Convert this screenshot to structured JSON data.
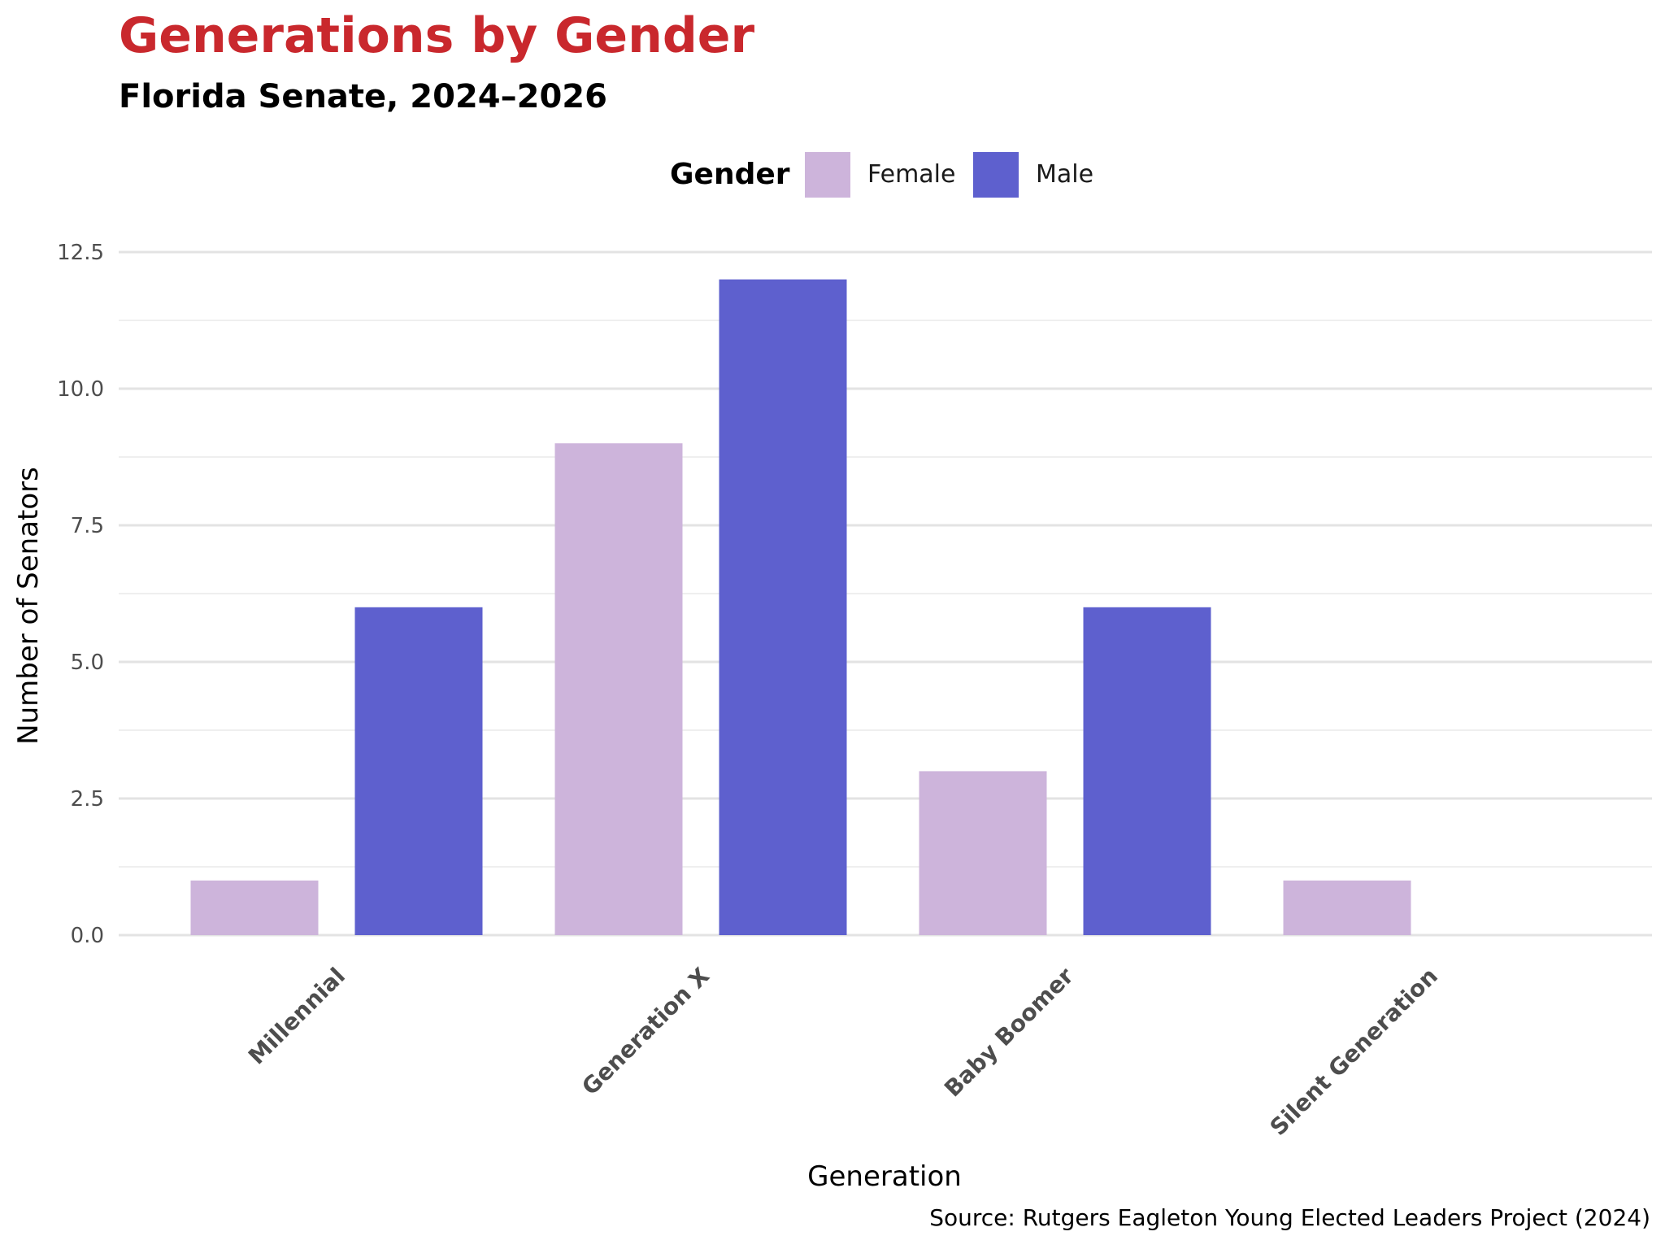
{
  "chart_data": {
    "type": "bar",
    "title": "Generations by Gender",
    "subtitle": "Florida Senate, 2024–2026",
    "xlabel": "Generation",
    "ylabel": "Number of Senators",
    "caption": "Source: Rutgers Eagleton Young Elected Leaders Project (2024)",
    "categories": [
      "Millennial",
      "Generation X",
      "Baby Boomer",
      "Silent Generation"
    ],
    "legend": {
      "title": "Gender",
      "position": "top"
    },
    "series": [
      {
        "name": "Female",
        "color": "#cdb4db",
        "values": [
          1,
          9,
          3,
          1
        ]
      },
      {
        "name": "Male",
        "color": "#5e60ce",
        "values": [
          6,
          12,
          6,
          0
        ]
      }
    ],
    "ylim": [
      0,
      12.5
    ],
    "y_ticks": [
      "0.0",
      "2.5",
      "5.0",
      "7.5",
      "10.0",
      "12.5"
    ],
    "grid": true,
    "colors": {
      "title": "#c9282d",
      "grid_major": "#e3e3e3",
      "grid_minor": "#efefef"
    }
  }
}
